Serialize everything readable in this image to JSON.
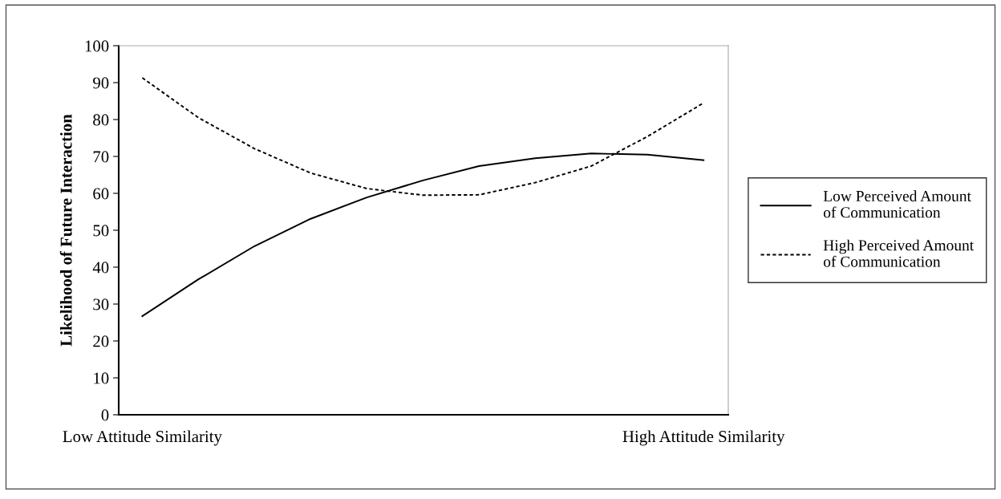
{
  "chart_data": {
    "type": "line",
    "ylabel": "Likelihood of Future Interaction",
    "categories": [
      "Low Attitude Similarity",
      null,
      null,
      null,
      null,
      null,
      null,
      null,
      null,
      null,
      "High Attitude Similarity"
    ],
    "series": [
      {
        "name": "Low Perceived Amount of Communication",
        "color": "#000000",
        "line_style": "solid",
        "values": [
          26.7,
          36.7,
          45.7,
          53.1,
          58.9,
          63.5,
          67.4,
          69.5,
          70.8,
          70.5,
          69.0
        ]
      },
      {
        "name": "High Perceived Amount of Communication",
        "color": "#000000",
        "line_style": "dotted",
        "values": [
          91.3,
          80.5,
          72.1,
          65.5,
          61.3,
          59.5,
          59.6,
          62.9,
          67.4,
          75.4,
          84.5
        ]
      }
    ],
    "ylim": [
      0,
      100
    ],
    "yticks": [
      0,
      10,
      20,
      30,
      40,
      50,
      60,
      70,
      80,
      90,
      100
    ],
    "grid": false,
    "legend": "right",
    "marker": "none"
  }
}
